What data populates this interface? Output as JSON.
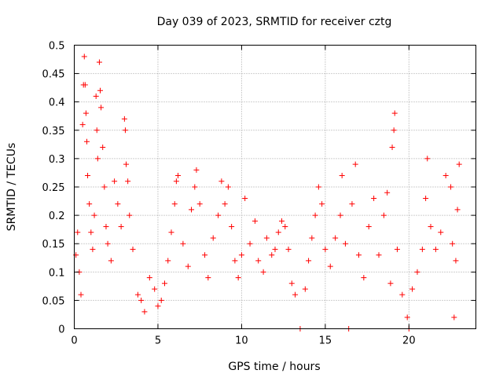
{
  "chart_data": {
    "type": "scatter",
    "title": "Day 039 of 2023, SRMTID for receiver cztg",
    "xlabel": "GPS time / hours",
    "ylabel": "SRMTID / TECUs",
    "xlim": [
      0,
      24
    ],
    "ylim": [
      0,
      0.5
    ],
    "xticks": [
      0,
      5,
      10,
      15,
      20
    ],
    "xtick_labels": [
      "0",
      "5",
      "10",
      "15",
      "20"
    ],
    "yticks": [
      0,
      0.05,
      0.1,
      0.15,
      0.2,
      0.25,
      0.3,
      0.35,
      0.4,
      0.45,
      0.5
    ],
    "ytick_labels": [
      "0",
      "0.05",
      "0.1",
      "0.15",
      "0.2",
      "0.25",
      "0.3",
      "0.35",
      "0.4",
      "0.45",
      "0.5"
    ],
    "grid": true,
    "marker": "+",
    "color": "#ff0000",
    "x_data_range": [
      0,
      23
    ],
    "series": [
      {
        "name": "SRMTID",
        "points": [
          [
            0.1,
            0.13
          ],
          [
            0.2,
            0.17
          ],
          [
            0.3,
            0.1
          ],
          [
            0.4,
            0.06
          ],
          [
            0.5,
            0.36
          ],
          [
            0.55,
            0.43
          ],
          [
            0.6,
            0.48
          ],
          [
            0.65,
            0.43
          ],
          [
            0.7,
            0.38
          ],
          [
            0.75,
            0.33
          ],
          [
            0.8,
            0.27
          ],
          [
            0.9,
            0.22
          ],
          [
            1.0,
            0.17
          ],
          [
            1.1,
            0.14
          ],
          [
            1.2,
            0.2
          ],
          [
            1.3,
            0.41
          ],
          [
            1.35,
            0.35
          ],
          [
            1.4,
            0.3
          ],
          [
            1.5,
            0.47
          ],
          [
            1.55,
            0.42
          ],
          [
            1.6,
            0.39
          ],
          [
            1.7,
            0.32
          ],
          [
            1.8,
            0.25
          ],
          [
            1.9,
            0.18
          ],
          [
            2.0,
            0.15
          ],
          [
            2.2,
            0.12
          ],
          [
            2.4,
            0.26
          ],
          [
            2.6,
            0.22
          ],
          [
            2.8,
            0.18
          ],
          [
            3.0,
            0.37
          ],
          [
            3.05,
            0.35
          ],
          [
            3.1,
            0.29
          ],
          [
            3.2,
            0.26
          ],
          [
            3.3,
            0.2
          ],
          [
            3.5,
            0.14
          ],
          [
            3.8,
            0.06
          ],
          [
            4.0,
            0.05
          ],
          [
            4.2,
            0.03
          ],
          [
            4.5,
            0.09
          ],
          [
            4.8,
            0.07
          ],
          [
            5.0,
            0.04
          ],
          [
            5.2,
            0.05
          ],
          [
            5.4,
            0.08
          ],
          [
            5.6,
            0.12
          ],
          [
            5.8,
            0.17
          ],
          [
            6.0,
            0.22
          ],
          [
            6.1,
            0.26
          ],
          [
            6.2,
            0.27
          ],
          [
            6.5,
            0.15
          ],
          [
            6.8,
            0.11
          ],
          [
            7.0,
            0.21
          ],
          [
            7.2,
            0.25
          ],
          [
            7.3,
            0.28
          ],
          [
            7.5,
            0.22
          ],
          [
            7.8,
            0.13
          ],
          [
            8.0,
            0.09
          ],
          [
            8.3,
            0.16
          ],
          [
            8.6,
            0.2
          ],
          [
            8.8,
            0.26
          ],
          [
            9.0,
            0.22
          ],
          [
            9.2,
            0.25
          ],
          [
            9.4,
            0.18
          ],
          [
            9.6,
            0.12
          ],
          [
            9.8,
            0.09
          ],
          [
            10.0,
            0.13
          ],
          [
            10.2,
            0.23
          ],
          [
            10.5,
            0.15
          ],
          [
            10.8,
            0.19
          ],
          [
            11.0,
            0.12
          ],
          [
            11.3,
            0.1
          ],
          [
            11.5,
            0.16
          ],
          [
            11.8,
            0.13
          ],
          [
            12.0,
            0.14
          ],
          [
            12.2,
            0.17
          ],
          [
            12.4,
            0.19
          ],
          [
            12.6,
            0.18
          ],
          [
            12.8,
            0.14
          ],
          [
            13.0,
            0.08
          ],
          [
            13.2,
            0.06
          ],
          [
            13.5,
            0.0
          ],
          [
            13.8,
            0.07
          ],
          [
            14.0,
            0.12
          ],
          [
            14.2,
            0.16
          ],
          [
            14.4,
            0.2
          ],
          [
            14.6,
            0.25
          ],
          [
            14.8,
            0.22
          ],
          [
            15.0,
            0.14
          ],
          [
            15.3,
            0.11
          ],
          [
            15.6,
            0.16
          ],
          [
            15.9,
            0.2
          ],
          [
            16.0,
            0.27
          ],
          [
            16.2,
            0.15
          ],
          [
            16.4,
            0.0
          ],
          [
            16.6,
            0.22
          ],
          [
            16.8,
            0.29
          ],
          [
            17.0,
            0.13
          ],
          [
            17.3,
            0.09
          ],
          [
            17.6,
            0.18
          ],
          [
            17.9,
            0.23
          ],
          [
            18.2,
            0.13
          ],
          [
            18.5,
            0.2
          ],
          [
            18.7,
            0.24
          ],
          [
            18.9,
            0.08
          ],
          [
            19.0,
            0.32
          ],
          [
            19.1,
            0.35
          ],
          [
            19.15,
            0.38
          ],
          [
            19.3,
            0.14
          ],
          [
            19.6,
            0.06
          ],
          [
            19.9,
            0.02
          ],
          [
            20.0,
            0.0
          ],
          [
            20.2,
            0.07
          ],
          [
            20.5,
            0.1
          ],
          [
            20.8,
            0.14
          ],
          [
            21.0,
            0.23
          ],
          [
            21.1,
            0.3
          ],
          [
            21.3,
            0.18
          ],
          [
            21.6,
            0.14
          ],
          [
            21.9,
            0.17
          ],
          [
            22.2,
            0.27
          ],
          [
            22.5,
            0.25
          ],
          [
            22.6,
            0.15
          ],
          [
            22.7,
            0.02
          ],
          [
            22.8,
            0.12
          ],
          [
            22.9,
            0.21
          ],
          [
            23.0,
            0.29
          ]
        ]
      }
    ]
  }
}
